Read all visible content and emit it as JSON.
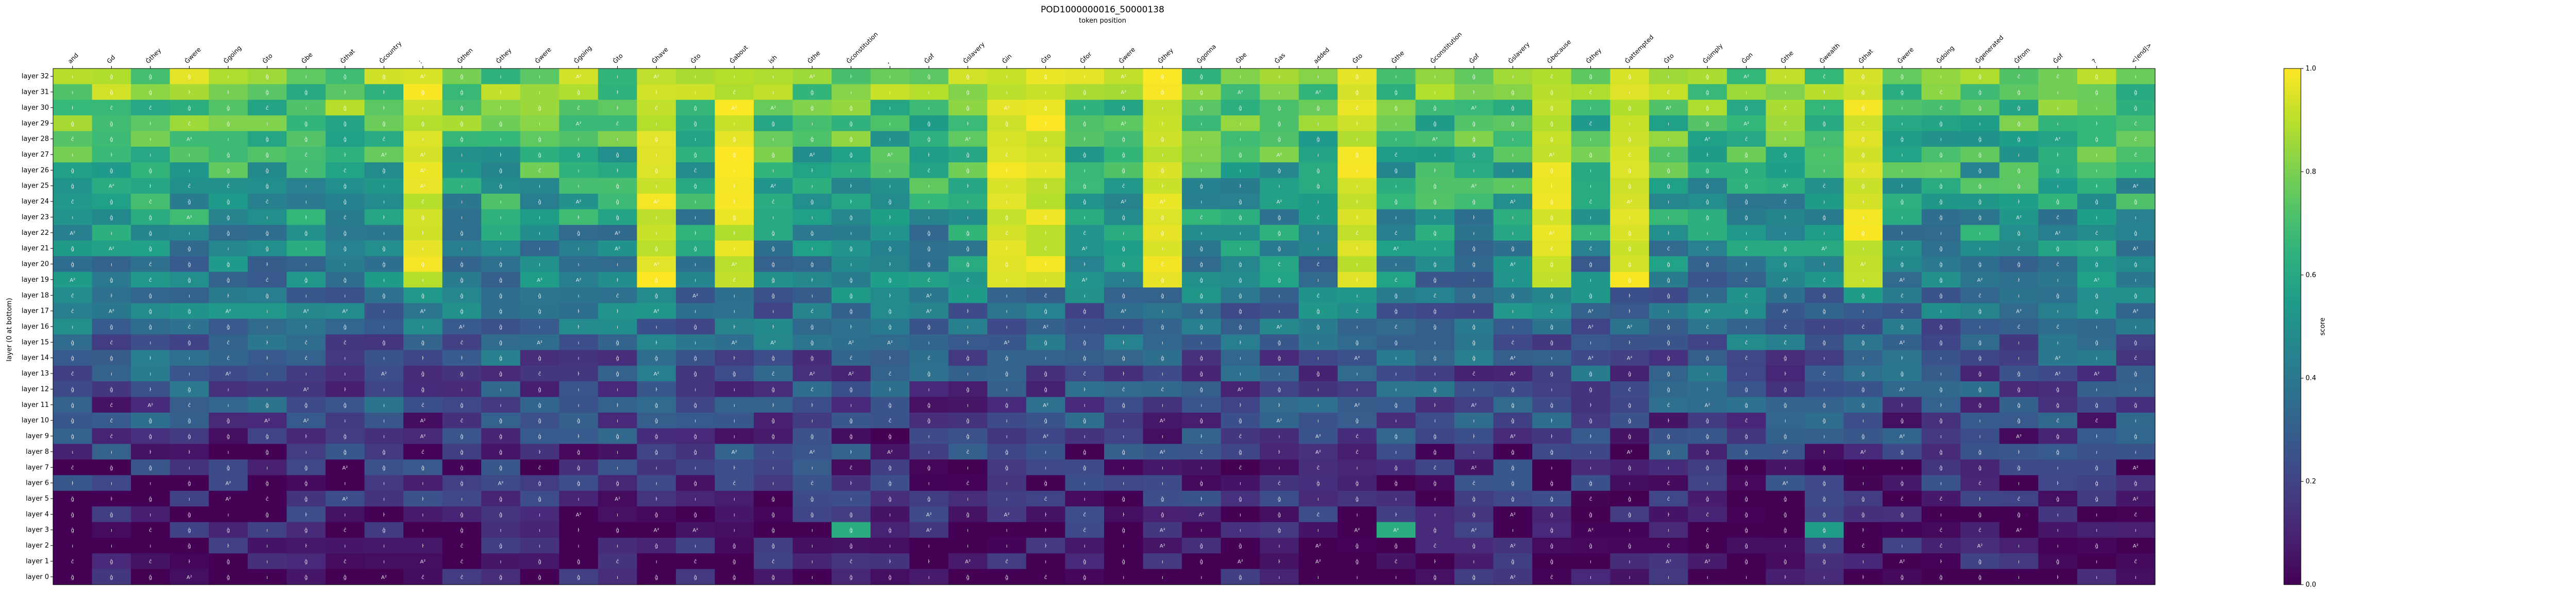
{
  "chart_data": {
    "type": "heatmap",
    "title": "POD1000000016_50000138",
    "subtitle": "token position",
    "ylabel": "layer (0 at bottom)",
    "colorbar_label": "score",
    "colormap": "viridis",
    "value_range": [
      0.0,
      1.0
    ],
    "colorbar_ticks": [
      "0.0",
      "0.2",
      "0.4",
      "0.6",
      "0.8",
      "1.0"
    ],
    "x_tokens": [
      "and",
      "Gd",
      "Ġthey",
      "Ġwere",
      "Ġgoing",
      "Ġto",
      "Ġbe",
      "Ġthat",
      "Ġcountry",
      ":",
      "Ġthen",
      "Ġthey",
      "Ġwere",
      "Ġgoing",
      "Ġto",
      "Ġhave",
      "Ġto",
      "Ġabout",
      "ish",
      "Ġthe",
      "Ġconstitution",
      ",",
      "Ġof",
      "Ġslavery",
      "Ġin",
      "Ġto",
      "Ġfor",
      "Ġwere",
      "Ġthey",
      "Ġgonna",
      "Ġbe",
      "Ġas",
      "added",
      "Ġto",
      "Ġthe",
      "Ġconstitution",
      "Ġof",
      "Ġslavery",
      "Ġbecause",
      "Ġthey",
      "Ġattempted",
      "Ġto",
      "Ġsimply",
      "Ġon",
      "Ġthe",
      "Ġwealth",
      "Ġthat",
      "Ġwere",
      "Ġdoing",
      "Ġgenerated",
      "Ġfrom",
      "Ġof",
      "?",
      "<|end|>"
    ],
    "y_labels": [
      "layer 32",
      "layer 31",
      "layer 30",
      "layer 29",
      "layer 28",
      "layer 27",
      "layer 26",
      "layer 25",
      "layer 24",
      "layer 23",
      "layer 22",
      "layer 21",
      "layer 20",
      "layer 19",
      "layer 18",
      "layer 17",
      "layer 16",
      "layer 15",
      "layer 14",
      "layer 13",
      "layer 12",
      "layer 11",
      "layer 10",
      "layer 9",
      "layer 8",
      "layer 7",
      "layer 6",
      "layer 5",
      "layer 4",
      "layer 3",
      "layer 2",
      "layer 1",
      "layer 0"
    ],
    "highlights": [
      {
        "token_index": 20,
        "layer": 3,
        "value": 0.62
      },
      {
        "token_index": 34,
        "layer": 3,
        "value": 0.62
      },
      {
        "token_index": 45,
        "layer": 3,
        "value": 0.55
      }
    ],
    "cell_text": [
      "ĝ",
      "ĝ",
      "A²",
      "ı",
      "ĉ",
      "ŀ",
      "ı",
      "ĝ",
      "ĝ",
      "ı"
    ],
    "hot_columns": [
      9,
      15,
      17,
      24,
      25,
      28,
      33,
      38,
      40,
      46
    ],
    "hot_min_layer": 19
  }
}
